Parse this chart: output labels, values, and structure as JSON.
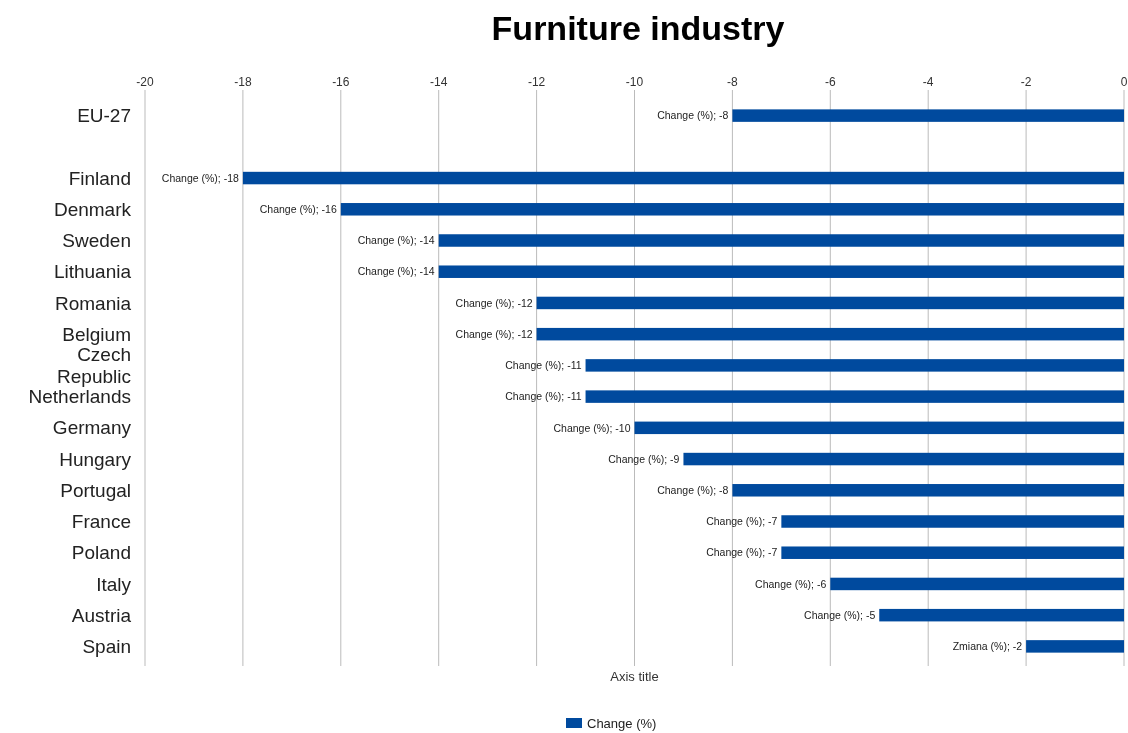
{
  "chart_data": {
    "type": "bar",
    "orientation": "horizontal",
    "title": "Furniture industry",
    "xlabel": "Axis title",
    "categories": [
      "EU-27",
      null,
      "Finland",
      "Denmark",
      "Sweden",
      "Lithuania",
      "Romania",
      "Belgium",
      "Czech Republic",
      "Netherlands",
      "Germany",
      "Hungary",
      "Portugal",
      "France",
      "Poland",
      "Italy",
      "Austria",
      "Spain"
    ],
    "series": [
      {
        "name": "Change (%)",
        "color": "#004a9e",
        "values": [
          -8,
          null,
          -18,
          -16,
          -14,
          -14,
          -12,
          -12,
          -11,
          -11,
          -10,
          -9,
          -8,
          -7,
          -7,
          -6,
          -5,
          -2
        ],
        "value_labels": [
          "Change (%); -8",
          null,
          "Change (%); -18",
          "Change (%); -16",
          "Change (%); -14",
          "Change (%); -14",
          "Change (%); -12",
          "Change (%); -12",
          "Change (%); -11",
          "Change (%); -11",
          "Change (%); -10",
          "Change (%); -9",
          "Change (%); -8",
          "Change (%); -7",
          "Change (%); -7",
          "Change (%); -6",
          "Change (%); -5",
          "Zmiana (%); -2"
        ]
      }
    ],
    "xlim": [
      -20,
      0
    ],
    "xticks": [
      -20,
      -18,
      -16,
      -14,
      -12,
      -10,
      -8,
      -6,
      -4,
      -2,
      0
    ],
    "grid": "x",
    "legend": "bottom"
  }
}
